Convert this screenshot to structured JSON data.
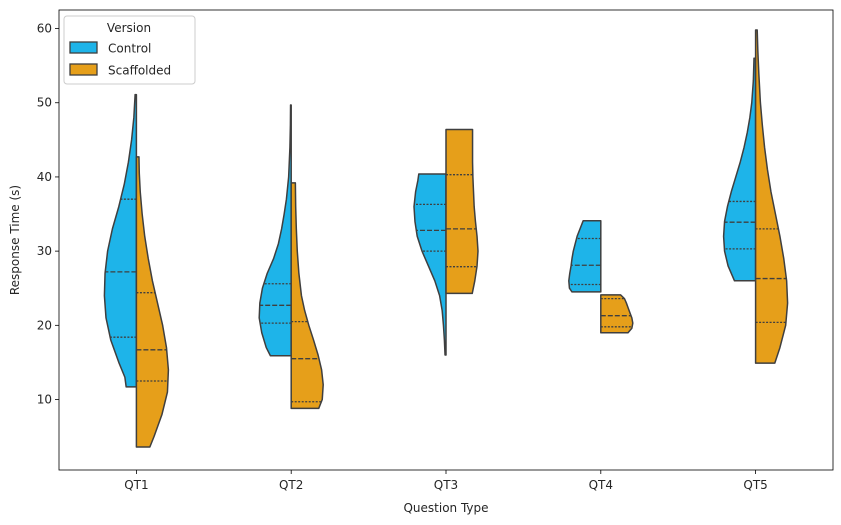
{
  "chart_data": {
    "type": "violin",
    "split": true,
    "inner": "quartile",
    "xlabel": "Question Type",
    "ylabel": "Response Time (s)",
    "categories": [
      "QT1",
      "QT2",
      "QT3",
      "QT4",
      "QT5"
    ],
    "yticks": [
      10,
      20,
      30,
      40,
      50,
      60
    ],
    "ylim": [
      0.5,
      62.5
    ],
    "grid": false,
    "legend": {
      "title": "Version",
      "position": "top-left",
      "entries": [
        "Control",
        "Scaffolded"
      ]
    },
    "series": [
      {
        "name": "Control",
        "color": "#1EB4E9",
        "side": "left",
        "violins": [
          {
            "category": "QT1",
            "min": 11.7,
            "max": 51.1,
            "quartiles": [
              18.4,
              27.2,
              37.0
            ],
            "profile": [
              [
                11.7,
                0.32
              ],
              [
                13,
                0.36
              ],
              [
                15,
                0.55
              ],
              [
                18,
                0.8
              ],
              [
                21,
                0.95
              ],
              [
                24,
                1.0
              ],
              [
                27,
                0.98
              ],
              [
                30,
                0.9
              ],
              [
                33,
                0.75
              ],
              [
                36,
                0.55
              ],
              [
                39,
                0.38
              ],
              [
                42,
                0.25
              ],
              [
                45,
                0.15
              ],
              [
                48,
                0.08
              ],
              [
                51.1,
                0.04
              ]
            ]
          },
          {
            "category": "QT2",
            "min": 15.9,
            "max": 49.7,
            "quartiles": [
              20.3,
              22.7,
              25.6
            ],
            "profile": [
              [
                15.9,
                0.65
              ],
              [
                17,
                0.78
              ],
              [
                19,
                0.92
              ],
              [
                21,
                1.0
              ],
              [
                23,
                0.98
              ],
              [
                25,
                0.9
              ],
              [
                27,
                0.75
              ],
              [
                29,
                0.55
              ],
              [
                31,
                0.4
              ],
              [
                33,
                0.3
              ],
              [
                35,
                0.22
              ],
              [
                37,
                0.15
              ],
              [
                40,
                0.08
              ],
              [
                44,
                0.04
              ],
              [
                47,
                0.025
              ],
              [
                49.7,
                0.02
              ]
            ]
          },
          {
            "category": "QT3",
            "min": 16.0,
            "max": 40.4,
            "quartiles": [
              30.0,
              32.8,
              36.3
            ],
            "profile": [
              [
                16,
                0.03
              ],
              [
                18,
                0.05
              ],
              [
                20,
                0.08
              ],
              [
                22,
                0.12
              ],
              [
                24,
                0.2
              ],
              [
                26,
                0.35
              ],
              [
                28,
                0.55
              ],
              [
                30,
                0.75
              ],
              [
                32,
                0.9
              ],
              [
                34,
                0.97
              ],
              [
                36,
                1.0
              ],
              [
                38,
                0.95
              ],
              [
                39.5,
                0.88
              ],
              [
                40.4,
                0.85
              ]
            ]
          },
          {
            "category": "QT4",
            "min": 24.5,
            "max": 34.1,
            "quartiles": [
              25.5,
              28.1,
              31.7
            ],
            "profile": [
              [
                24.5,
                0.9
              ],
              [
                25,
                0.98
              ],
              [
                26,
                1.0
              ],
              [
                27,
                0.97
              ],
              [
                28,
                0.93
              ],
              [
                29,
                0.9
              ],
              [
                30,
                0.86
              ],
              [
                31,
                0.8
              ],
              [
                32,
                0.74
              ],
              [
                33,
                0.65
              ],
              [
                34.1,
                0.55
              ]
            ]
          },
          {
            "category": "QT5",
            "min": 26.0,
            "max": 56.0,
            "quartiles": [
              30.3,
              33.9,
              36.7
            ],
            "profile": [
              [
                26,
                0.66
              ],
              [
                28,
                0.86
              ],
              [
                30,
                0.97
              ],
              [
                32,
                1.0
              ],
              [
                34,
                0.97
              ],
              [
                36,
                0.88
              ],
              [
                38,
                0.76
              ],
              [
                40,
                0.62
              ],
              [
                42,
                0.48
              ],
              [
                44,
                0.36
              ],
              [
                46,
                0.26
              ],
              [
                48,
                0.18
              ],
              [
                50,
                0.12
              ],
              [
                53,
                0.07
              ],
              [
                56,
                0.05
              ]
            ]
          }
        ]
      },
      {
        "name": "Scaffolded",
        "color": "#E69F1A",
        "side": "right",
        "violins": [
          {
            "category": "QT1",
            "min": 3.6,
            "max": 42.7,
            "quartiles": [
              12.5,
              16.7,
              24.4
            ],
            "profile": [
              [
                3.6,
                0.42
              ],
              [
                5,
                0.55
              ],
              [
                8,
                0.8
              ],
              [
                11,
                0.97
              ],
              [
                14,
                1.0
              ],
              [
                17,
                0.94
              ],
              [
                20,
                0.82
              ],
              [
                23,
                0.66
              ],
              [
                26,
                0.5
              ],
              [
                29,
                0.37
              ],
              [
                32,
                0.26
              ],
              [
                35,
                0.18
              ],
              [
                38,
                0.12
              ],
              [
                40.5,
                0.09
              ],
              [
                42.7,
                0.08
              ]
            ]
          },
          {
            "category": "QT2",
            "min": 8.8,
            "max": 39.2,
            "quartiles": [
              9.7,
              15.5,
              20.5
            ],
            "profile": [
              [
                8.8,
                0.86
              ],
              [
                10,
                0.97
              ],
              [
                12,
                1.0
              ],
              [
                14,
                0.95
              ],
              [
                16,
                0.84
              ],
              [
                18,
                0.7
              ],
              [
                20,
                0.55
              ],
              [
                22,
                0.42
              ],
              [
                24,
                0.32
              ],
              [
                27,
                0.24
              ],
              [
                30,
                0.19
              ],
              [
                33,
                0.16
              ],
              [
                36,
                0.14
              ],
              [
                39.2,
                0.13
              ]
            ]
          },
          {
            "category": "QT3",
            "min": 24.3,
            "max": 46.4,
            "quartiles": [
              27.9,
              33.0,
              40.3
            ],
            "profile": [
              [
                24.3,
                0.82
              ],
              [
                26,
                0.9
              ],
              [
                28,
                0.97
              ],
              [
                30,
                1.0
              ],
              [
                32,
                0.97
              ],
              [
                34,
                0.92
              ],
              [
                36,
                0.88
              ],
              [
                38,
                0.86
              ],
              [
                40,
                0.84
              ],
              [
                42,
                0.83
              ],
              [
                44,
                0.83
              ],
              [
                46.4,
                0.83
              ]
            ]
          },
          {
            "category": "QT4",
            "min": 19.0,
            "max": 24.1,
            "quartiles": [
              19.8,
              21.3,
              23.6
            ],
            "profile": [
              [
                19,
                0.85
              ],
              [
                19.6,
                0.97
              ],
              [
                20.3,
                1.0
              ],
              [
                21,
                0.97
              ],
              [
                21.7,
                0.91
              ],
              [
                22.4,
                0.85
              ],
              [
                23,
                0.8
              ],
              [
                23.6,
                0.74
              ],
              [
                24.1,
                0.62
              ]
            ]
          },
          {
            "category": "QT5",
            "min": 14.9,
            "max": 59.8,
            "quartiles": [
              20.4,
              26.3,
              33.0
            ],
            "profile": [
              [
                14.9,
                0.6
              ],
              [
                17,
                0.76
              ],
              [
                20,
                0.94
              ],
              [
                23,
                1.0
              ],
              [
                26,
                0.97
              ],
              [
                29,
                0.88
              ],
              [
                32,
                0.76
              ],
              [
                35,
                0.62
              ],
              [
                38,
                0.48
              ],
              [
                41,
                0.37
              ],
              [
                44,
                0.28
              ],
              [
                47,
                0.21
              ],
              [
                50,
                0.15
              ],
              [
                54,
                0.1
              ],
              [
                57,
                0.07
              ],
              [
                59.8,
                0.05
              ]
            ]
          }
        ]
      }
    ]
  }
}
